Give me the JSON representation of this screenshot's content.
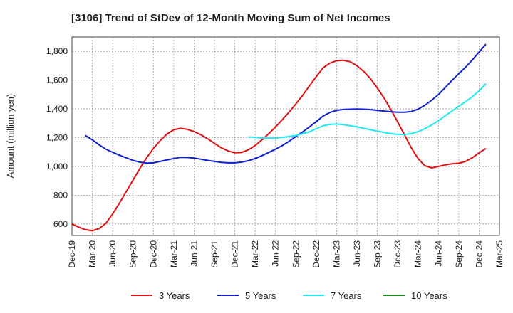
{
  "chart_data": {
    "type": "line",
    "title": "[3106]  Trend of StDev of 12-Month Moving Sum of Net Incomes",
    "xlabel": "",
    "ylabel": "Amount (million yen)",
    "ylim": [
      520,
      1900
    ],
    "yticks": [
      600,
      800,
      1000,
      1200,
      1400,
      1600,
      1800
    ],
    "ytick_labels": [
      "600",
      "800",
      "1,000",
      "1,200",
      "1,400",
      "1,600",
      "1,800"
    ],
    "xticks": [
      "Dec-19",
      "Mar-20",
      "Jun-20",
      "Sep-20",
      "Dec-20",
      "Mar-21",
      "Jun-21",
      "Sep-21",
      "Dec-21",
      "Mar-22",
      "Jun-22",
      "Sep-22",
      "Dec-22",
      "Mar-23",
      "Jun-23",
      "Sep-23",
      "Dec-23",
      "Mar-24",
      "Jun-24",
      "Sep-24",
      "Dec-24",
      "Mar-25"
    ],
    "grid": true,
    "legend_position": "bottom",
    "series": [
      {
        "name": "3 Years",
        "color": "#e01010",
        "points": [
          [
            "Dec-19",
            600
          ],
          [
            "Jan-20",
            578
          ],
          [
            "Feb-20",
            560
          ],
          [
            "Mar-20",
            553
          ],
          [
            "Apr-20",
            568
          ],
          [
            "May-20",
            605
          ],
          [
            "Jun-20",
            670
          ],
          [
            "Jul-20",
            745
          ],
          [
            "Aug-20",
            825
          ],
          [
            "Sep-20",
            905
          ],
          [
            "Oct-20",
            985
          ],
          [
            "Nov-20",
            1060
          ],
          [
            "Dec-20",
            1125
          ],
          [
            "Jan-21",
            1180
          ],
          [
            "Feb-21",
            1225
          ],
          [
            "Mar-21",
            1255
          ],
          [
            "Apr-21",
            1265
          ],
          [
            "May-21",
            1258
          ],
          [
            "Jun-21",
            1242
          ],
          [
            "Jul-21",
            1220
          ],
          [
            "Aug-21",
            1192
          ],
          [
            "Sep-21",
            1160
          ],
          [
            "Oct-21",
            1130
          ],
          [
            "Nov-21",
            1108
          ],
          [
            "Dec-21",
            1095
          ],
          [
            "Jan-22",
            1097
          ],
          [
            "Feb-22",
            1115
          ],
          [
            "Mar-22",
            1145
          ],
          [
            "Apr-22",
            1185
          ],
          [
            "May-22",
            1228
          ],
          [
            "Jun-22",
            1275
          ],
          [
            "Jul-22",
            1325
          ],
          [
            "Aug-22",
            1378
          ],
          [
            "Sep-22",
            1435
          ],
          [
            "Oct-22",
            1495
          ],
          [
            "Nov-22",
            1560
          ],
          [
            "Dec-22",
            1625
          ],
          [
            "Jan-23",
            1685
          ],
          [
            "Feb-23",
            1718
          ],
          [
            "Mar-23",
            1735
          ],
          [
            "Apr-23",
            1738
          ],
          [
            "May-23",
            1728
          ],
          [
            "Jun-23",
            1700
          ],
          [
            "Jul-23",
            1660
          ],
          [
            "Aug-23",
            1610
          ],
          [
            "Sep-23",
            1545
          ],
          [
            "Oct-23",
            1475
          ],
          [
            "Nov-23",
            1395
          ],
          [
            "Dec-23",
            1310
          ],
          [
            "Jan-24",
            1220
          ],
          [
            "Feb-24",
            1130
          ],
          [
            "Mar-24",
            1055
          ],
          [
            "Apr-24",
            1005
          ],
          [
            "May-24",
            990
          ],
          [
            "Jun-24",
            1000
          ],
          [
            "Jul-24",
            1010
          ],
          [
            "Aug-24",
            1018
          ],
          [
            "Sep-24",
            1022
          ],
          [
            "Oct-24",
            1035
          ],
          [
            "Nov-24",
            1060
          ],
          [
            "Dec-24",
            1095
          ],
          [
            "Jan-25",
            1125
          ]
        ]
      },
      {
        "name": "5 Years",
        "color": "#1020d0",
        "points": [
          [
            "Feb-20",
            1215
          ],
          [
            "Mar-20",
            1185
          ],
          [
            "Apr-20",
            1150
          ],
          [
            "May-20",
            1120
          ],
          [
            "Jun-20",
            1098
          ],
          [
            "Jul-20",
            1078
          ],
          [
            "Aug-20",
            1060
          ],
          [
            "Sep-20",
            1042
          ],
          [
            "Oct-20",
            1030
          ],
          [
            "Nov-20",
            1023
          ],
          [
            "Dec-20",
            1025
          ],
          [
            "Jan-21",
            1035
          ],
          [
            "Feb-21",
            1045
          ],
          [
            "Mar-21",
            1055
          ],
          [
            "Apr-21",
            1063
          ],
          [
            "May-21",
            1062
          ],
          [
            "Jun-21",
            1058
          ],
          [
            "Jul-21",
            1050
          ],
          [
            "Aug-21",
            1042
          ],
          [
            "Sep-21",
            1035
          ],
          [
            "Oct-21",
            1028
          ],
          [
            "Nov-21",
            1025
          ],
          [
            "Dec-21",
            1025
          ],
          [
            "Jan-22",
            1030
          ],
          [
            "Feb-22",
            1040
          ],
          [
            "Mar-22",
            1055
          ],
          [
            "Apr-22",
            1075
          ],
          [
            "May-22",
            1097
          ],
          [
            "Jun-22",
            1120
          ],
          [
            "Jul-22",
            1145
          ],
          [
            "Aug-22",
            1175
          ],
          [
            "Sep-22",
            1208
          ],
          [
            "Oct-22",
            1240
          ],
          [
            "Nov-22",
            1275
          ],
          [
            "Dec-22",
            1312
          ],
          [
            "Jan-23",
            1350
          ],
          [
            "Feb-23",
            1375
          ],
          [
            "Mar-23",
            1390
          ],
          [
            "Apr-23",
            1396
          ],
          [
            "May-23",
            1398
          ],
          [
            "Jun-23",
            1399
          ],
          [
            "Jul-23",
            1398
          ],
          [
            "Aug-23",
            1395
          ],
          [
            "Sep-23",
            1390
          ],
          [
            "Oct-23",
            1385
          ],
          [
            "Nov-23",
            1380
          ],
          [
            "Dec-23",
            1377
          ],
          [
            "Jan-24",
            1377
          ],
          [
            "Feb-24",
            1382
          ],
          [
            "Mar-24",
            1398
          ],
          [
            "Apr-24",
            1425
          ],
          [
            "May-24",
            1460
          ],
          [
            "Jun-24",
            1500
          ],
          [
            "Jul-24",
            1548
          ],
          [
            "Aug-24",
            1598
          ],
          [
            "Sep-24",
            1645
          ],
          [
            "Oct-24",
            1690
          ],
          [
            "Nov-24",
            1740
          ],
          [
            "Dec-24",
            1795
          ],
          [
            "Jan-25",
            1850
          ]
        ]
      },
      {
        "name": "7 Years",
        "color": "#20e8f0",
        "points": [
          [
            "Feb-22",
            1205
          ],
          [
            "Mar-22",
            1202
          ],
          [
            "Apr-22",
            1198
          ],
          [
            "May-22",
            1196
          ],
          [
            "Jun-22",
            1197
          ],
          [
            "Jul-22",
            1202
          ],
          [
            "Aug-22",
            1208
          ],
          [
            "Sep-22",
            1215
          ],
          [
            "Oct-22",
            1228
          ],
          [
            "Nov-22",
            1240
          ],
          [
            "Dec-22",
            1262
          ],
          [
            "Jan-23",
            1282
          ],
          [
            "Feb-23",
            1292
          ],
          [
            "Mar-23",
            1295
          ],
          [
            "Apr-23",
            1290
          ],
          [
            "May-23",
            1283
          ],
          [
            "Jun-23",
            1275
          ],
          [
            "Jul-23",
            1265
          ],
          [
            "Aug-23",
            1255
          ],
          [
            "Sep-23",
            1245
          ],
          [
            "Oct-23",
            1236
          ],
          [
            "Nov-23",
            1228
          ],
          [
            "Dec-23",
            1223
          ],
          [
            "Jan-24",
            1222
          ],
          [
            "Feb-24",
            1228
          ],
          [
            "Mar-24",
            1242
          ],
          [
            "Apr-24",
            1262
          ],
          [
            "May-24",
            1288
          ],
          [
            "Jun-24",
            1318
          ],
          [
            "Jul-24",
            1352
          ],
          [
            "Aug-24",
            1385
          ],
          [
            "Sep-24",
            1418
          ],
          [
            "Oct-24",
            1450
          ],
          [
            "Nov-24",
            1485
          ],
          [
            "Dec-24",
            1525
          ],
          [
            "Jan-25",
            1575
          ]
        ]
      },
      {
        "name": "10 Years",
        "color": "#1a8a1a",
        "points": []
      }
    ]
  }
}
